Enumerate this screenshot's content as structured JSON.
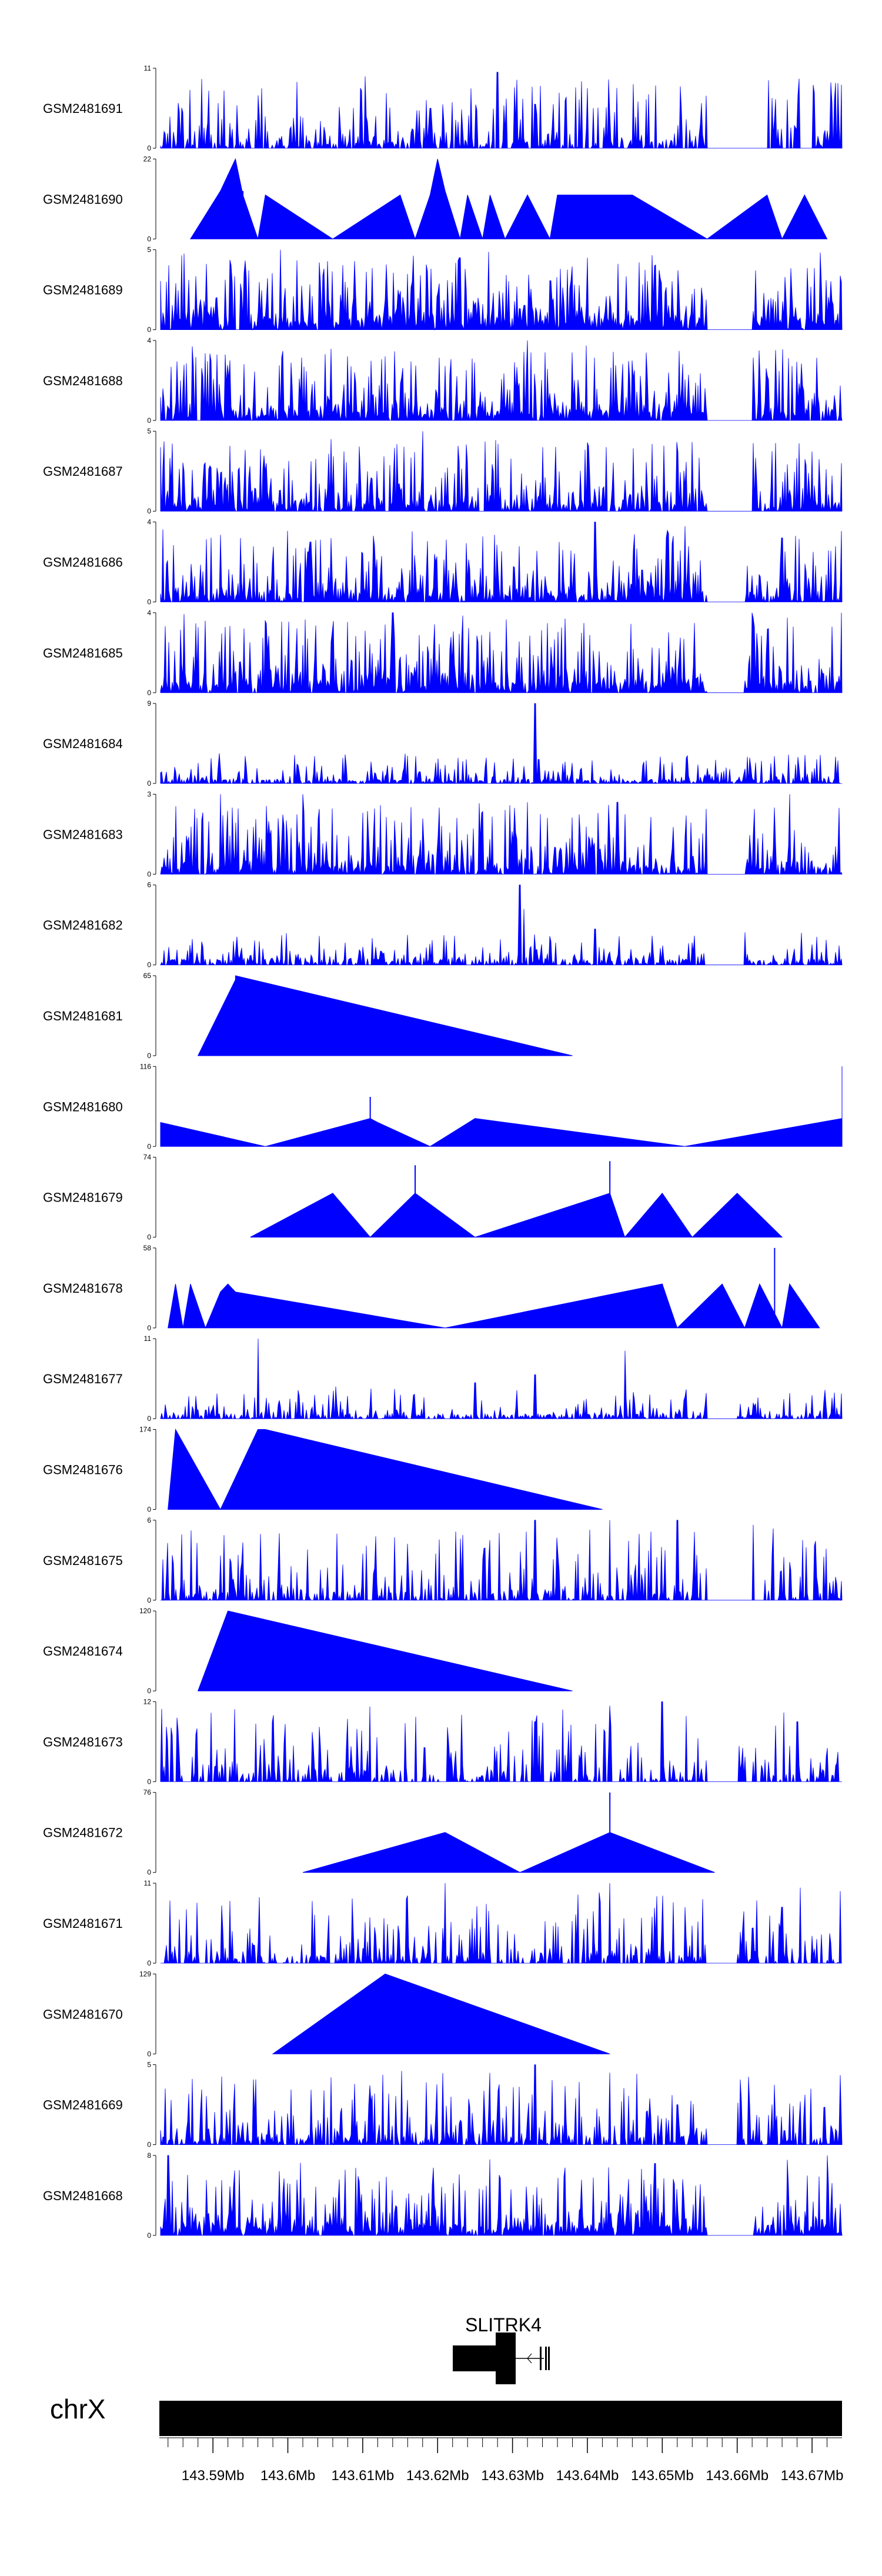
{
  "chart_data": {
    "type": "area",
    "fill_color": "#0000ff",
    "chromosome": "chrX",
    "x_range_mb": [
      143.583,
      143.674
    ],
    "gene": {
      "name": "SLITRK4",
      "strand": "-",
      "span_mb": [
        143.622,
        143.637
      ]
    },
    "coordinate_ticks": [
      "143.59Mb",
      "143.6Mb",
      "143.61Mb",
      "143.62Mb",
      "143.63Mb",
      "143.64Mb",
      "143.65Mb",
      "143.66Mb",
      "143.67Mb"
    ],
    "coordinate_tick_values": [
      143.59,
      143.6,
      143.61,
      143.62,
      143.63,
      143.64,
      143.65,
      143.66,
      143.67
    ],
    "tracks": [
      {
        "name": "GSM2481691",
        "ymax": 11,
        "style": "dense",
        "seed": 11,
        "sparsity": 0.35,
        "base": 0.08,
        "gaps": [
          [
            143.656,
            143.664
          ]
        ],
        "peaks": [
          [
            143.586,
            0.45
          ],
          [
            143.619,
            0.5
          ],
          [
            143.628,
            0.95
          ],
          [
            143.633,
            0.55
          ],
          [
            143.64,
            0.75
          ],
          [
            143.643,
            0.45
          ],
          [
            143.673,
            0.6
          ]
        ]
      },
      {
        "name": "GSM2481690",
        "ymax": 22,
        "style": "segments",
        "spikes": [
          [
            143.594,
            0.6
          ],
          [
            143.592,
            0.8
          ],
          [
            143.621,
            0.45
          ],
          [
            143.64,
            0.55
          ],
          [
            143.65,
            0.3
          ]
        ],
        "points": [
          [
            143.587,
            0
          ],
          [
            143.591,
            0.6
          ],
          [
            143.593,
            1.0
          ],
          [
            143.594,
            0.55
          ],
          [
            143.596,
            0
          ],
          [
            143.597,
            0.55
          ],
          [
            143.606,
            0
          ],
          [
            143.615,
            0.55
          ],
          [
            143.617,
            0
          ],
          [
            143.619,
            0.55
          ],
          [
            143.62,
            1.0
          ],
          [
            143.621,
            0.6
          ],
          [
            143.623,
            0
          ],
          [
            143.624,
            0.55
          ],
          [
            143.626,
            0
          ],
          [
            143.627,
            0.55
          ],
          [
            143.629,
            0
          ],
          [
            143.632,
            0.55
          ],
          [
            143.635,
            0
          ],
          [
            143.636,
            0.55
          ],
          [
            143.642,
            0.55
          ],
          [
            143.646,
            0.55
          ],
          [
            143.656,
            0
          ],
          [
            143.664,
            0.55
          ],
          [
            143.666,
            0
          ],
          [
            143.669,
            0.55
          ],
          [
            143.672,
            0
          ]
        ]
      },
      {
        "name": "GSM2481689",
        "ymax": 5,
        "style": "dense",
        "seed": 89,
        "sparsity": 0.1,
        "base": 0.15,
        "gaps": [
          [
            143.656,
            143.662
          ]
        ],
        "peaks": [
          [
            143.599,
            1.0
          ],
          [
            143.623,
            0.9
          ],
          [
            143.64,
            0.9
          ],
          [
            143.649,
            0.8
          ]
        ]
      },
      {
        "name": "GSM2481688",
        "ymax": 4,
        "style": "dense",
        "seed": 88,
        "sparsity": 0.12,
        "base": 0.12,
        "gaps": [
          [
            143.656,
            143.662
          ]
        ],
        "peaks": [
          [
            143.613,
            0.8
          ],
          [
            143.632,
            1.0
          ],
          [
            143.638,
            0.85
          ],
          [
            143.646,
            0.75
          ]
        ]
      },
      {
        "name": "GSM2481687",
        "ymax": 5,
        "style": "dense",
        "seed": 87,
        "sparsity": 0.2,
        "base": 0.1,
        "gaps": [
          [
            143.656,
            143.662
          ]
        ],
        "peaks": [
          [
            143.583,
            0.8
          ],
          [
            143.618,
            1.0
          ],
          [
            143.634,
            0.8
          ],
          [
            143.674,
            0.6
          ]
        ]
      },
      {
        "name": "GSM2481686",
        "ymax": 4,
        "style": "dense",
        "seed": 86,
        "sparsity": 0.2,
        "base": 0.1,
        "gaps": [
          [
            143.656,
            143.661
          ]
        ],
        "peaks": [
          [
            143.603,
            0.75
          ],
          [
            143.626,
            0.8
          ],
          [
            143.641,
            1.0
          ],
          [
            143.666,
            0.8
          ]
        ]
      },
      {
        "name": "GSM2481685",
        "ymax": 4,
        "style": "dense",
        "seed": 85,
        "sparsity": 0.12,
        "base": 0.15,
        "gaps": [
          [
            143.656,
            143.661
          ]
        ],
        "peaks": [
          [
            143.589,
            0.9
          ],
          [
            143.614,
            1.0
          ],
          [
            143.637,
            0.9
          ],
          [
            143.662,
            1.0
          ],
          [
            143.674,
            1.0
          ]
        ]
      },
      {
        "name": "GSM2481684",
        "ymax": 9,
        "style": "dense",
        "seed": 84,
        "sparsity": 0.25,
        "base": 0.05,
        "lowamp": true,
        "gaps": [],
        "peaks": [
          [
            143.633,
            1.0
          ],
          [
            143.6329,
            0.55
          ],
          [
            143.6335,
            0.3
          ]
        ]
      },
      {
        "name": "GSM2481683",
        "ymax": 3,
        "style": "dense",
        "seed": 83,
        "sparsity": 0.15,
        "base": 0.1,
        "gaps": [
          [
            143.656,
            143.661
          ]
        ],
        "peaks": [
          [
            143.591,
            1.0
          ],
          [
            143.602,
            1.0
          ],
          [
            143.632,
            0.9
          ],
          [
            143.644,
            0.9
          ],
          [
            143.667,
            1.0
          ]
        ]
      },
      {
        "name": "GSM2481682",
        "ymax": 6,
        "style": "dense",
        "seed": 82,
        "sparsity": 0.3,
        "base": 0.08,
        "lowamp": true,
        "gaps": [
          [
            143.656,
            143.661
          ]
        ],
        "peaks": [
          [
            143.631,
            1.0
          ],
          [
            143.6315,
            0.7
          ],
          [
            143.641,
            0.45
          ]
        ]
      },
      {
        "name": "GSM2481681",
        "ymax": 65,
        "style": "segments",
        "spikes": [],
        "points": [
          [
            143.588,
            0
          ],
          [
            143.593,
            0.95
          ],
          [
            143.593,
            0.6
          ],
          [
            143.593,
            1.0
          ],
          [
            143.638,
            0
          ]
        ]
      },
      {
        "name": "GSM2481680",
        "ymax": 116,
        "style": "segments",
        "spikes": [
          [
            143.611,
            0.62
          ]
        ],
        "points": [
          [
            143.583,
            0.3
          ],
          [
            143.597,
            0
          ],
          [
            143.611,
            0.35
          ],
          [
            143.612,
            0.3
          ],
          [
            143.619,
            0
          ],
          [
            143.625,
            0.35
          ],
          [
            143.653,
            0
          ],
          [
            143.674,
            0.35
          ],
          [
            143.674,
            1.0
          ]
        ]
      },
      {
        "name": "GSM2481679",
        "ymax": 74,
        "style": "segments",
        "spikes": [
          [
            143.617,
            0.9
          ],
          [
            143.643,
            0.95
          ]
        ],
        "points": [
          [
            143.595,
            0
          ],
          [
            143.606,
            0.55
          ],
          [
            143.611,
            0
          ],
          [
            143.617,
            0.55
          ],
          [
            143.625,
            0
          ],
          [
            143.643,
            0.55
          ],
          [
            143.645,
            0
          ],
          [
            143.65,
            0.55
          ],
          [
            143.654,
            0
          ],
          [
            143.66,
            0.55
          ],
          [
            143.666,
            0
          ]
        ]
      },
      {
        "name": "GSM2481678",
        "ymax": 58,
        "style": "segments",
        "spikes": [
          [
            143.593,
            0.45
          ],
          [
            143.65,
            0.55
          ],
          [
            143.665,
            1.0
          ]
        ],
        "points": [
          [
            143.584,
            0
          ],
          [
            143.585,
            0.55
          ],
          [
            143.586,
            0
          ],
          [
            143.587,
            0.55
          ],
          [
            143.589,
            0
          ],
          [
            143.591,
            0.45
          ],
          [
            143.592,
            0.55
          ],
          [
            143.593,
            0.45
          ],
          [
            143.621,
            0
          ],
          [
            143.65,
            0.55
          ],
          [
            143.652,
            0
          ],
          [
            143.658,
            0.55
          ],
          [
            143.661,
            0
          ],
          [
            143.663,
            0.55
          ],
          [
            143.666,
            0
          ],
          [
            143.667,
            0.55
          ],
          [
            143.671,
            0
          ]
        ]
      },
      {
        "name": "GSM2481677",
        "ymax": 11,
        "style": "dense",
        "seed": 77,
        "sparsity": 0.3,
        "base": 0.06,
        "lowamp": true,
        "gaps": [
          [
            143.656,
            143.66
          ]
        ],
        "peaks": [
          [
            143.596,
            1.0
          ],
          [
            143.625,
            0.45
          ],
          [
            143.633,
            0.55
          ],
          [
            143.645,
            0.85
          ]
        ]
      },
      {
        "name": "GSM2481676",
        "ymax": 174,
        "style": "segments",
        "spikes": [],
        "points": [
          [
            143.584,
            0
          ],
          [
            143.585,
            1.0
          ],
          [
            143.591,
            0
          ],
          [
            143.596,
            1.0
          ],
          [
            143.597,
            1.0
          ],
          [
            143.642,
            0
          ]
        ]
      },
      {
        "name": "GSM2481675",
        "ymax": 6,
        "style": "dense",
        "seed": 75,
        "sparsity": 0.45,
        "base": 0.1,
        "gaps": [
          [
            143.656,
            143.662
          ]
        ],
        "peaks": [
          [
            143.633,
            1.0
          ],
          [
            143.643,
            1.0
          ],
          [
            143.652,
            1.0
          ],
          [
            143.627,
            0.75
          ]
        ]
      },
      {
        "name": "GSM2481674",
        "ymax": 120,
        "style": "segments",
        "spikes": [],
        "points": [
          [
            143.588,
            0
          ],
          [
            143.592,
            1.0
          ],
          [
            143.638,
            0
          ]
        ]
      },
      {
        "name": "GSM2481673",
        "ymax": 12,
        "style": "dense",
        "seed": 73,
        "sparsity": 0.5,
        "base": 0.1,
        "gaps": [
          [
            143.656,
            143.66
          ]
        ],
        "peaks": [
          [
            143.633,
            0.75
          ],
          [
            143.643,
            0.95
          ],
          [
            143.65,
            1.0
          ],
          [
            143.668,
            0.75
          ]
        ]
      },
      {
        "name": "GSM2481672",
        "ymax": 76,
        "style": "segments",
        "spikes": [
          [
            143.643,
            1.0
          ]
        ],
        "points": [
          [
            143.602,
            0
          ],
          [
            143.621,
            0.5
          ],
          [
            143.631,
            0
          ],
          [
            143.643,
            0.5
          ],
          [
            143.657,
            0
          ]
        ]
      },
      {
        "name": "GSM2481671",
        "ymax": 11,
        "style": "dense",
        "seed": 71,
        "sparsity": 0.45,
        "base": 0.1,
        "gaps": [
          [
            143.656,
            143.66
          ]
        ],
        "peaks": [
          [
            143.621,
            1.0
          ],
          [
            143.643,
            1.0
          ],
          [
            143.653,
            0.7
          ],
          [
            143.666,
            0.7
          ]
        ]
      },
      {
        "name": "GSM2481670",
        "ymax": 129,
        "style": "segments",
        "spikes": [],
        "points": [
          [
            143.598,
            0
          ],
          [
            143.613,
            1.0
          ],
          [
            143.643,
            0
          ]
        ]
      },
      {
        "name": "GSM2481669",
        "ymax": 5,
        "style": "dense",
        "seed": 69,
        "sparsity": 0.3,
        "base": 0.08,
        "gaps": [
          [
            143.656,
            143.66
          ]
        ],
        "peaks": [
          [
            143.633,
            1.0
          ],
          [
            143.643,
            0.9
          ],
          [
            143.652,
            0.5
          ]
        ]
      },
      {
        "name": "GSM2481668",
        "ymax": 8,
        "style": "dense",
        "seed": 68,
        "sparsity": 0.15,
        "base": 0.12,
        "gaps": [
          [
            143.656,
            143.662
          ]
        ],
        "peaks": [
          [
            143.584,
            1.0
          ],
          [
            143.627,
            0.95
          ],
          [
            143.649,
            0.9
          ],
          [
            143.672,
            1.0
          ]
        ]
      }
    ]
  }
}
